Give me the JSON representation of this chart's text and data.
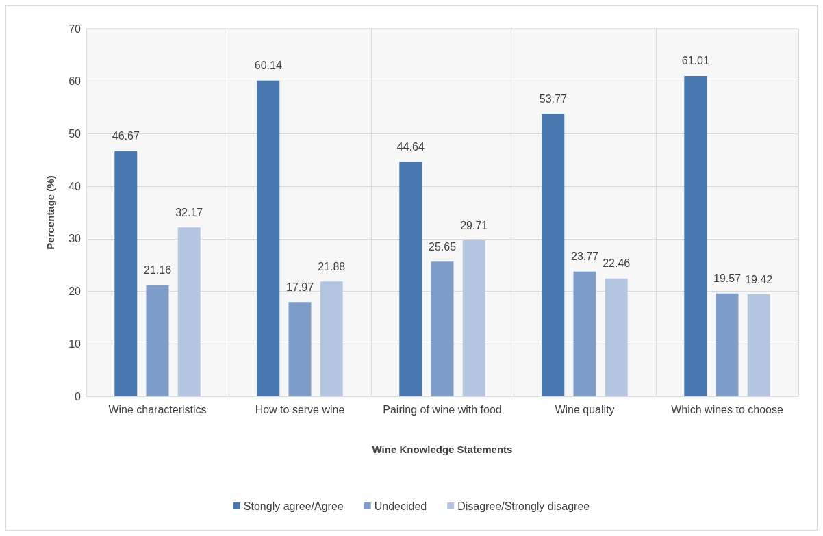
{
  "chart_data": {
    "type": "bar",
    "xlabel": "Wine Knowledge Statements",
    "ylabel": "Percentage (%)",
    "categories": [
      "Wine characteristics",
      "How to serve wine",
      "Pairing of wine with food",
      "Wine quality",
      "Which wines to choose"
    ],
    "series": [
      {
        "name": "Stongly agree/Agree",
        "color": "#4a78b0",
        "values": [
          46.67,
          60.14,
          44.64,
          53.77,
          61.01
        ]
      },
      {
        "name": "Undecided",
        "color": "#7f9dcb",
        "values": [
          21.16,
          17.97,
          25.65,
          23.77,
          19.57
        ]
      },
      {
        "name": "Disagree/Strongly disagree",
        "color": "#b4c5e1",
        "values": [
          32.17,
          21.88,
          29.71,
          22.46,
          19.42
        ]
      }
    ],
    "ylim": [
      0,
      70
    ],
    "yticks": [
      0,
      10,
      20,
      30,
      40,
      50,
      60,
      70
    ],
    "grid": true,
    "legend": "bottom",
    "data_labels": true
  }
}
